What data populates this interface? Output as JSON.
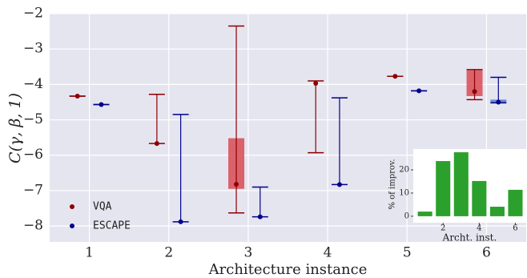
{
  "chart_data": [
    {
      "type": "errorbar",
      "xlabel": "Architecture instance",
      "ylabel": "C(γ, β, 1)",
      "x": [
        1,
        2,
        3,
        4,
        5,
        6
      ],
      "xlim": [
        0.5,
        6.5
      ],
      "xticks": [
        1,
        2,
        3,
        4,
        5,
        6
      ],
      "ylim": [
        -8.45,
        -2
      ],
      "yticks": [
        {
          "value": -8,
          "label": "−8"
        },
        {
          "value": -7,
          "label": "−7"
        },
        {
          "value": -6,
          "label": "−6"
        },
        {
          "value": -5,
          "label": "−5"
        },
        {
          "value": -4,
          "label": "−4"
        },
        {
          "value": -3,
          "label": "−3"
        },
        {
          "value": -2,
          "label": "−2"
        }
      ],
      "grid": true,
      "legend": "lower left",
      "series": [
        {
          "name": "VQA",
          "color": "#8b0000",
          "box_color": "#d9535c",
          "values": [
            -4.33,
            -5.67,
            -6.82,
            -3.97,
            -3.77,
            -4.2
          ],
          "min": [
            -4.33,
            -5.67,
            -7.63,
            -5.93,
            -3.77,
            -4.43
          ],
          "max": [
            -4.33,
            -4.28,
            -2.35,
            -3.9,
            -3.77,
            -3.58
          ],
          "q1": [
            null,
            null,
            -6.95,
            null,
            null,
            -4.33
          ],
          "q3": [
            null,
            null,
            -5.52,
            null,
            null,
            -3.6
          ]
        },
        {
          "name": "ESCAPE",
          "color": "#00008b",
          "box_color": "#5a7fc6",
          "values": [
            -4.57,
            -7.88,
            -7.74,
            -6.83,
            -4.18,
            -4.5
          ],
          "min": [
            -4.57,
            -7.88,
            -7.74,
            -6.83,
            -4.18,
            -4.52
          ],
          "max": [
            -4.57,
            -4.85,
            -6.9,
            -4.38,
            -4.18,
            -3.8
          ],
          "q1": [
            null,
            null,
            null,
            null,
            null,
            -4.52
          ],
          "q3": [
            null,
            null,
            null,
            null,
            null,
            -4.43
          ]
        }
      ]
    },
    {
      "type": "bar",
      "xlabel": "Archt. inst.",
      "ylabel": "% of improv.",
      "x": [
        1,
        2,
        3,
        4,
        5,
        6
      ],
      "values": [
        2,
        23.8,
        27.6,
        15.2,
        4.1,
        11.4
      ],
      "color": "#2ca02c",
      "xlim": [
        0.35,
        6.6
      ],
      "xticks": [
        2,
        4,
        6
      ],
      "ylim": [
        -2.8,
        29
      ],
      "yticks": [
        0,
        10,
        20
      ]
    }
  ]
}
